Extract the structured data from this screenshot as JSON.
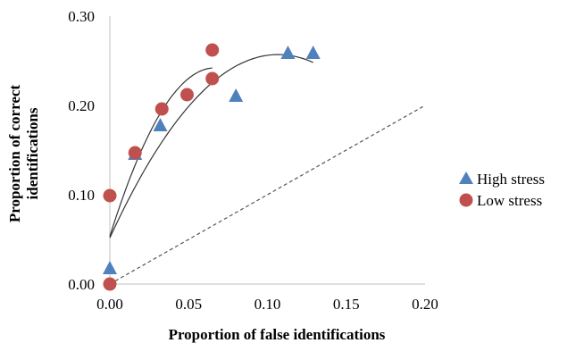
{
  "chart_data": {
    "type": "scatter",
    "xlabel": "Proportion of false identifications",
    "ylabel_lines": [
      "Proportion of correct",
      "identifications"
    ],
    "xlim": [
      0,
      0.2
    ],
    "ylim": [
      0,
      0.3
    ],
    "x_ticks": [
      "0.00",
      "0.05",
      "0.10",
      "0.15",
      "0.20"
    ],
    "y_ticks": [
      "0.00",
      "0.10",
      "0.20",
      "0.30"
    ],
    "legend_position": "right",
    "series": [
      {
        "name": "High stress",
        "marker": "triangle",
        "color": "#4F81BD",
        "points": [
          [
            0.0,
            0.017
          ],
          [
            0.016,
            0.145
          ],
          [
            0.032,
            0.177
          ],
          [
            0.08,
            0.21
          ],
          [
            0.113,
            0.258
          ],
          [
            0.129,
            0.258
          ]
        ]
      },
      {
        "name": "Low stress",
        "marker": "circle",
        "color": "#C0504D",
        "points": [
          [
            0.0,
            0.0
          ],
          [
            0.0,
            0.099
          ],
          [
            0.016,
            0.147
          ],
          [
            0.033,
            0.196
          ],
          [
            0.049,
            0.212
          ],
          [
            0.065,
            0.23
          ],
          [
            0.065,
            0.262
          ]
        ]
      }
    ],
    "chance_line": [
      [
        0,
        0
      ],
      [
        0.2,
        0.2
      ]
    ]
  }
}
